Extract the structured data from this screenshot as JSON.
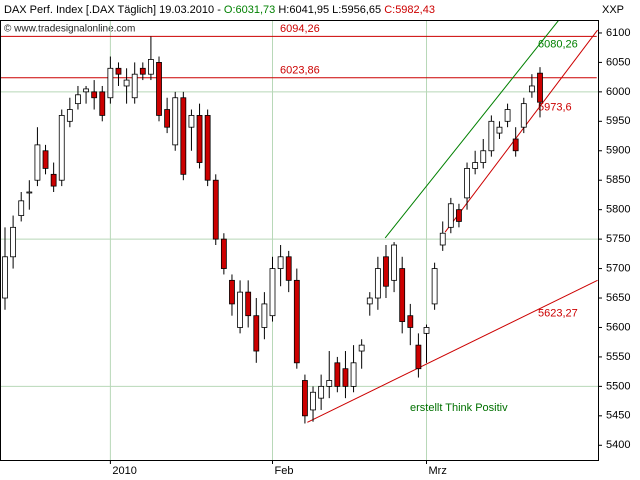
{
  "chart_data": {
    "type": "candlestick",
    "title": "DAX Perf. Index [.DAX  Täglich] 19.03.2010 -",
    "open_text": "O:6031,73",
    "high_low_text": "H:6041,95 L:5956,65",
    "close_text": "C:5982,43",
    "corner_label": "XXP",
    "watermark": "© www.tradesignalonline.com",
    "note": "erstellt Think Positiv",
    "up_color": "#ffffff",
    "down_color": "#cc0000",
    "note_color": "#007000",
    "categories": [
      null,
      null,
      null,
      null,
      null,
      null,
      null,
      null,
      null,
      null,
      null,
      null,
      null,
      "2010",
      null,
      null,
      null,
      null,
      null,
      null,
      null,
      null,
      null,
      null,
      null,
      null,
      null,
      null,
      null,
      null,
      null,
      null,
      null,
      "Feb",
      null,
      null,
      null,
      null,
      null,
      null,
      null,
      null,
      null,
      null,
      null,
      null,
      null,
      null,
      null,
      null,
      null,
      null,
      "Mrz",
      null,
      null,
      null,
      null,
      null,
      null,
      null,
      null,
      null,
      null,
      null,
      null,
      null,
      null
    ],
    "open": [
      5650,
      5720,
      5790,
      5830,
      5850,
      5900,
      5860,
      5850,
      5950,
      5980,
      6000,
      6000,
      6000,
      5990,
      6040,
      6010,
      5990,
      6040,
      6030,
      6050,
      5970,
      5910,
      5990,
      5940,
      5960,
      5960,
      5850,
      5750,
      5680,
      5600,
      5660,
      5620,
      5600,
      5620,
      5700,
      5720,
      5680,
      5510,
      5460,
      5480,
      5500,
      5540,
      5530,
      5500,
      5560,
      5640,
      5650,
      5720,
      5680,
      5700,
      5620,
      5570,
      5590,
      5640,
      5740,
      5770,
      5800,
      5820,
      5870,
      5880,
      5900,
      5930,
      5950,
      5920,
      5940,
      6000,
      6031.73
    ],
    "high": [
      5770,
      5790,
      5830,
      5850,
      5940,
      5910,
      5880,
      5970,
      5990,
      6010,
      6010,
      6020,
      6010,
      6060,
      6050,
      6040,
      6050,
      6050,
      6094,
      6060,
      5990,
      6000,
      6000,
      5970,
      5980,
      5970,
      5860,
      5760,
      5690,
      5680,
      5680,
      5650,
      5660,
      5720,
      5740,
      5730,
      5700,
      5520,
      5500,
      5520,
      5560,
      5550,
      5560,
      5570,
      5580,
      5660,
      5720,
      5740,
      5745,
      5720,
      5640,
      5590,
      5605,
      5710,
      5780,
      5820,
      5810,
      5880,
      5900,
      5920,
      5960,
      5950,
      5980,
      5940,
      5990,
      6030,
      6041.95
    ],
    "low": [
      5630,
      5700,
      5780,
      5800,
      5840,
      5860,
      5830,
      5840,
      5940,
      5970,
      5980,
      5970,
      5950,
      5980,
      6010,
      5980,
      5980,
      6020,
      6020,
      5950,
      5930,
      5900,
      5850,
      5900,
      5870,
      5840,
      5740,
      5690,
      5620,
      5590,
      5600,
      5540,
      5580,
      5610,
      5670,
      5660,
      5530,
      5437,
      5440,
      5460,
      5480,
      5490,
      5480,
      5490,
      5530,
      5620,
      5630,
      5650,
      5660,
      5590,
      5570,
      5515,
      5540,
      5630,
      5730,
      5760,
      5770,
      5800,
      5860,
      5870,
      5890,
      5920,
      5940,
      5890,
      5930,
      5990,
      5956.65
    ],
    "close": [
      5720,
      5770,
      5815,
      5830,
      5910,
      5870,
      5840,
      5960,
      5970,
      5995,
      6005,
      5990,
      5960,
      6040,
      6030,
      6020,
      6030,
      6030,
      6055,
      5960,
      5940,
      5990,
      5860,
      5960,
      5880,
      5850,
      5750,
      5700,
      5640,
      5660,
      5620,
      5560,
      5640,
      5700,
      5720,
      5680,
      5540,
      5450,
      5490,
      5500,
      5510,
      5500,
      5500,
      5540,
      5570,
      5650,
      5700,
      5670,
      5740,
      5610,
      5600,
      5530,
      5600,
      5700,
      5760,
      5810,
      5780,
      5870,
      5880,
      5900,
      5950,
      5940,
      5970,
      5900,
      5980,
      6010,
      5982.43
    ],
    "ylim": [
      5375,
      6122
    ],
    "yticks": [
      5400,
      5450,
      5500,
      5550,
      5600,
      5650,
      5700,
      5750,
      5800,
      5850,
      5900,
      5950,
      6000,
      6050,
      6100
    ],
    "ygrid": [
      5500,
      5750,
      6000
    ],
    "lines": [
      {
        "label": "6094,26",
        "value": 6094.26,
        "color": "#cc0000",
        "start": [
          -1,
          6094.26
        ],
        "end": [
          73,
          6094.26
        ]
      },
      {
        "label": "6023,86",
        "value": 6023.86,
        "color": "#cc0000",
        "start": [
          -1,
          6023.86
        ],
        "end": [
          73,
          6023.86
        ]
      },
      {
        "label": "6080,26",
        "value": 6080.26,
        "color": "#008000",
        "start": [
          46.9,
          5752
        ],
        "end": [
          70.3,
          6156
        ]
      },
      {
        "label": "5973,6",
        "value": 5973.6,
        "color": "#cc0000",
        "start": [
          54.3,
          5762
        ],
        "end": [
          73.1,
          6105
        ]
      },
      {
        "label": "5623,27",
        "value": 5623.27,
        "color": "#cc0000",
        "start": [
          37.3,
          5439
        ],
        "end": [
          73.1,
          5680
        ]
      }
    ]
  }
}
